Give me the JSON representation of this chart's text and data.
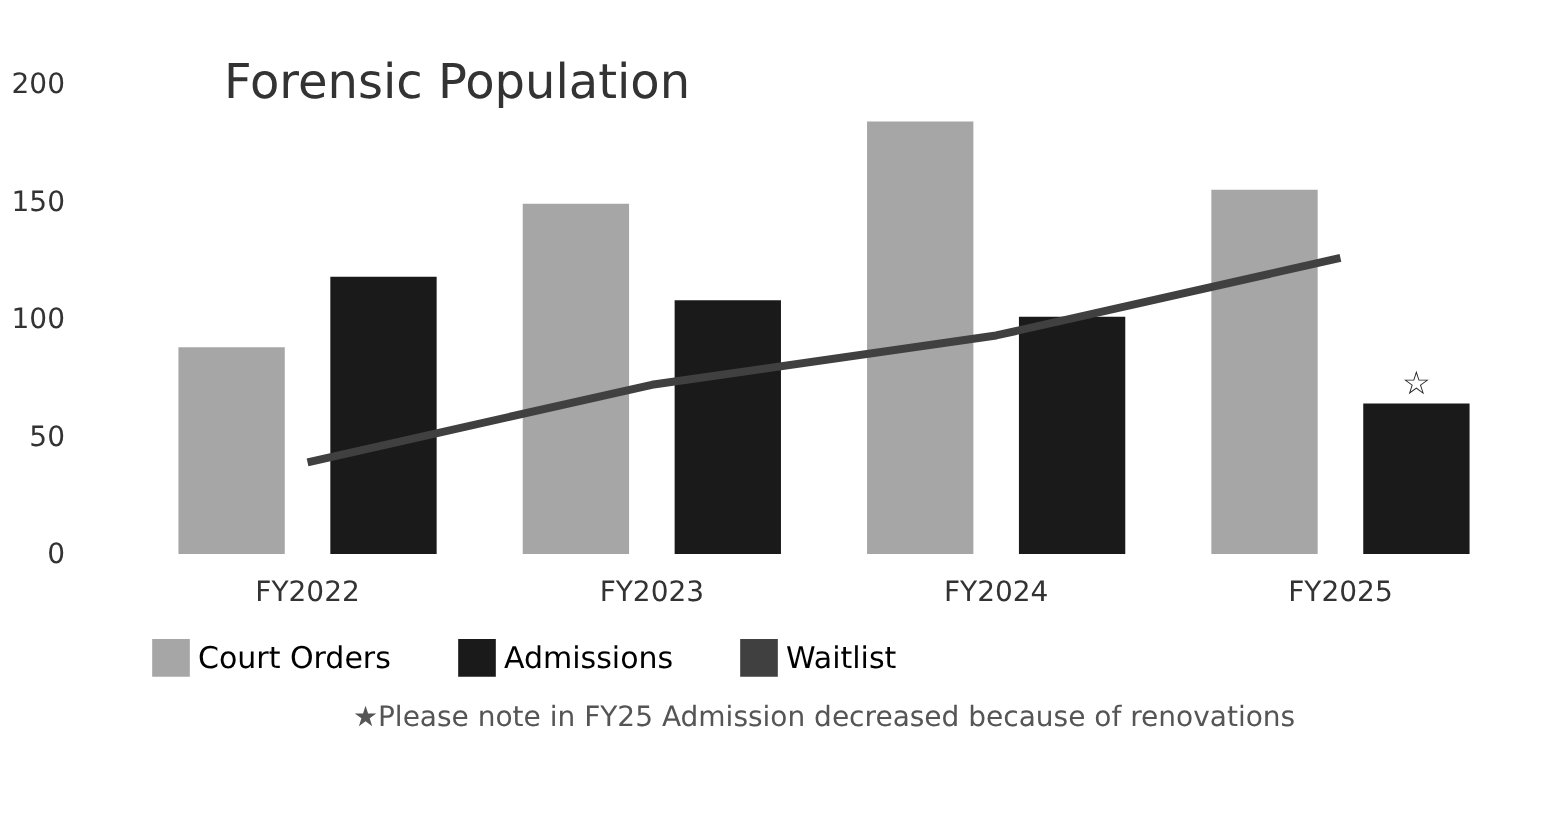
{
  "chart_data": {
    "type": "bar",
    "title": "Forensic Population",
    "categories": [
      "FY2022",
      "FY2023",
      "FY2024",
      "FY2025"
    ],
    "series": [
      {
        "name": "Court Orders",
        "color": "#a6a6a6",
        "values": [
          88,
          149,
          184,
          155
        ]
      },
      {
        "name": "Admissions",
        "color": "#1a1a1a",
        "values": [
          118,
          108,
          101,
          64
        ]
      },
      {
        "name": "Waitlist",
        "type": "line",
        "color": "#404040",
        "values": [
          39,
          72,
          93,
          126
        ]
      }
    ],
    "ylim": [
      0,
      200
    ],
    "yticks": [
      0,
      50,
      100,
      150,
      200
    ],
    "grid": false,
    "legend": "bottom",
    "annotations": [
      "☆",
      "★Please note in FY25 Admission decreased because of renovations"
    ]
  }
}
